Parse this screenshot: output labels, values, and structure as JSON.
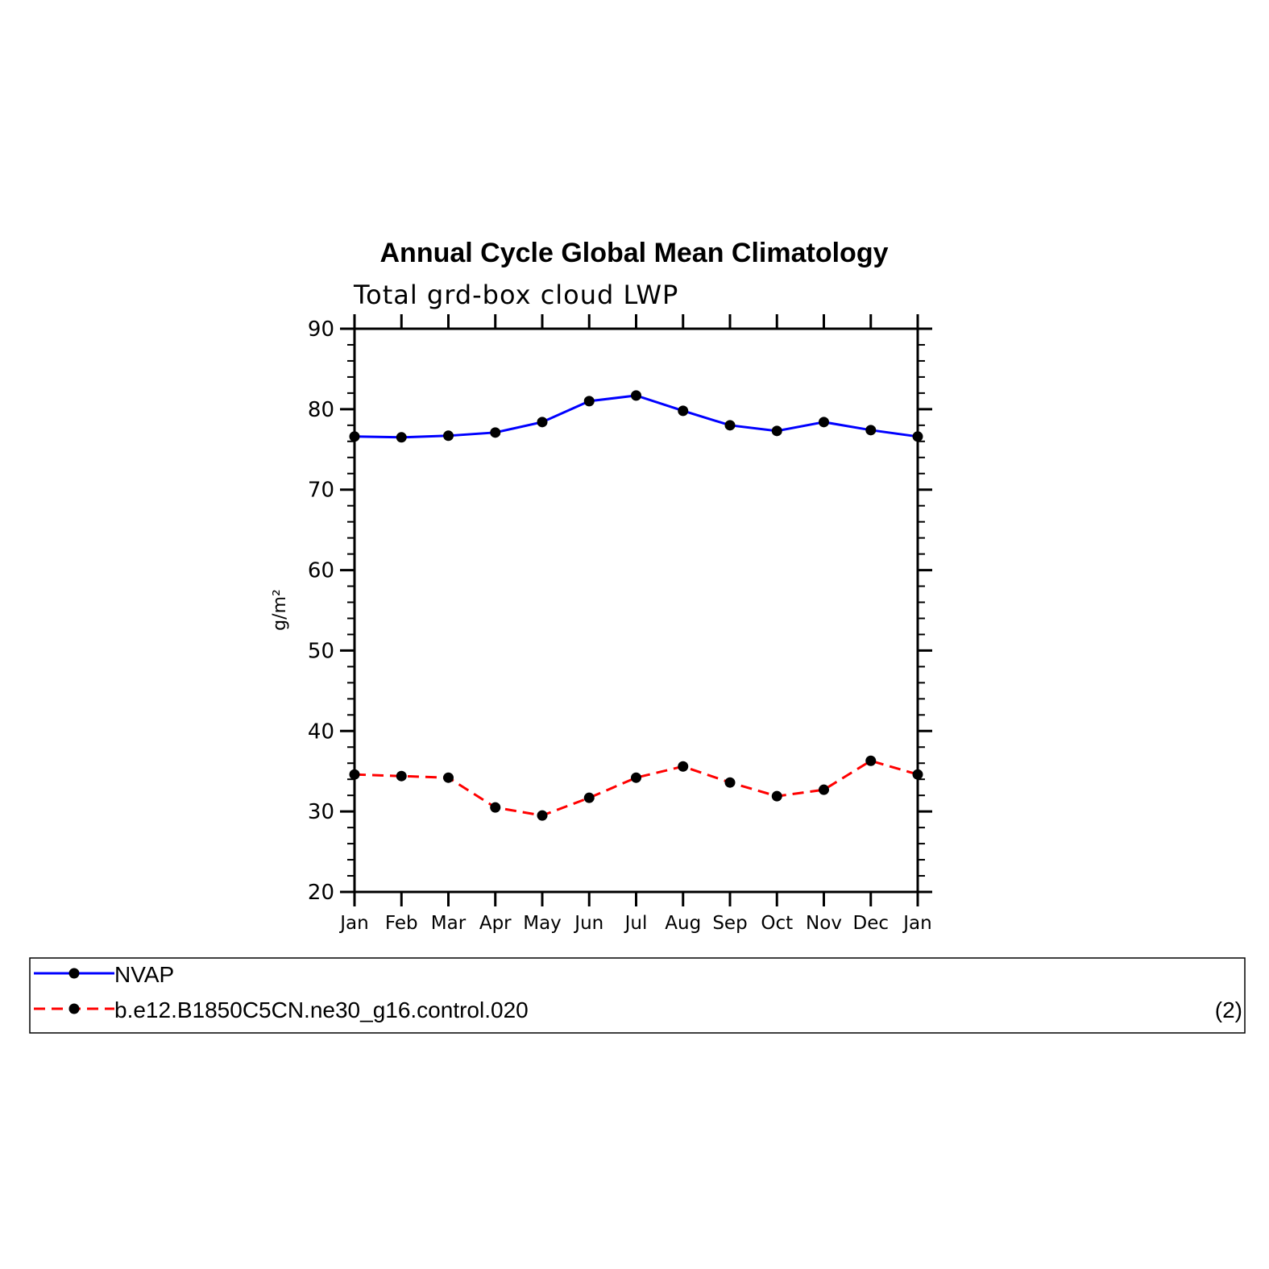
{
  "chart_data": {
    "type": "line",
    "title": "Annual Cycle Global Mean Climatology",
    "subtitle": "Total grd-box cloud LWP",
    "xlabel": "",
    "ylabel": "g/m²",
    "categories": [
      "Jan",
      "Feb",
      "Mar",
      "Apr",
      "May",
      "Jun",
      "Jul",
      "Aug",
      "Sep",
      "Oct",
      "Nov",
      "Dec",
      "Jan"
    ],
    "ylim": [
      20,
      90
    ],
    "yticks": [
      20,
      30,
      40,
      50,
      60,
      70,
      80,
      90
    ],
    "grid": false,
    "series": [
      {
        "name": "NVAP",
        "color": "#0000ff",
        "dash": "solid",
        "marker": "filled-circle",
        "values": [
          76.6,
          76.5,
          76.7,
          77.1,
          78.4,
          81.0,
          81.7,
          79.8,
          78.0,
          77.3,
          78.4,
          77.4,
          76.6
        ]
      },
      {
        "name": "b.e12.B1850C5CN.ne30_g16.control.020",
        "color": "#ff0000",
        "dash": "dashed",
        "marker": "filled-circle",
        "values": [
          34.6,
          34.4,
          34.2,
          30.5,
          29.5,
          31.7,
          34.2,
          35.6,
          33.6,
          31.9,
          32.7,
          36.3,
          34.6
        ]
      }
    ],
    "legend_note": "(2)",
    "legend_position": "bottom"
  }
}
